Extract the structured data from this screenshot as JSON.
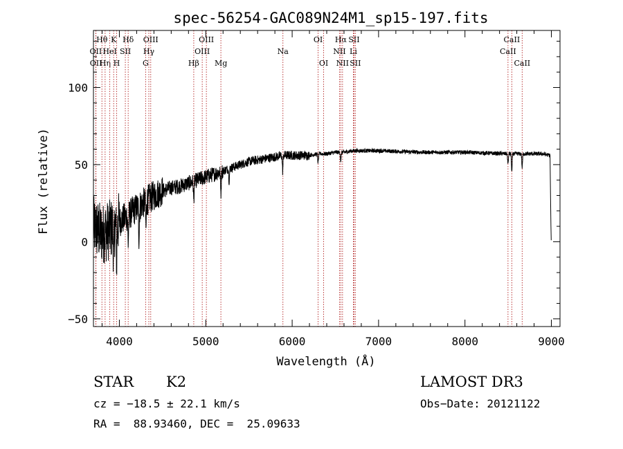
{
  "chart_data": {
    "type": "line",
    "title": "spec-56254-GAC089N24M1_sp15-197.fits",
    "xlabel": "Wavelength (Å)",
    "ylabel": "Flux (relative)",
    "xlim": [
      3700,
      9100
    ],
    "ylim": [
      -55,
      137
    ],
    "x_ticks": [
      4000,
      5000,
      6000,
      7000,
      8000,
      9000
    ],
    "y_ticks": [
      -50,
      0,
      50,
      100
    ],
    "x_tick_labels": [
      "4000",
      "5000",
      "6000",
      "7000",
      "8000",
      "9000"
    ],
    "y_tick_labels": [
      "−50",
      "0",
      "50",
      "100"
    ],
    "series": [
      {
        "name": "spectrum",
        "color": "#000000",
        "continuum": [
          [
            3700,
            10
          ],
          [
            3800,
            5
          ],
          [
            3900,
            8
          ],
          [
            4000,
            13
          ],
          [
            4100,
            17
          ],
          [
            4200,
            22
          ],
          [
            4300,
            26
          ],
          [
            4400,
            30
          ],
          [
            4500,
            33
          ],
          [
            4600,
            35
          ],
          [
            4700,
            36
          ],
          [
            4800,
            38
          ],
          [
            4900,
            40
          ],
          [
            5000,
            42
          ],
          [
            5100,
            44
          ],
          [
            5200,
            46
          ],
          [
            5300,
            48
          ],
          [
            5400,
            50
          ],
          [
            5500,
            52
          ],
          [
            5600,
            53
          ],
          [
            5700,
            54
          ],
          [
            5800,
            55
          ],
          [
            5900,
            56
          ],
          [
            6000,
            56
          ],
          [
            6100,
            56
          ],
          [
            6200,
            56
          ],
          [
            6300,
            57
          ],
          [
            6400,
            57
          ],
          [
            6500,
            58
          ],
          [
            6600,
            58
          ],
          [
            6700,
            59
          ],
          [
            6800,
            59
          ],
          [
            7000,
            59
          ],
          [
            7500,
            58
          ],
          [
            8000,
            58
          ],
          [
            8500,
            57
          ],
          [
            8700,
            57
          ],
          [
            8900,
            57
          ],
          [
            8980,
            56
          ]
        ],
        "absorption": [
          [
            3934,
            -25
          ],
          [
            3969,
            -22
          ],
          [
            4102,
            -18
          ],
          [
            4227,
            -20
          ],
          [
            4308,
            -18
          ],
          [
            4861,
            -12
          ],
          [
            5175,
            -14
          ],
          [
            5270,
            -8
          ],
          [
            5890,
            -10
          ],
          [
            6300,
            -6
          ],
          [
            6563,
            -6
          ],
          [
            8498,
            -7
          ],
          [
            8542,
            -12
          ],
          [
            8662,
            -9
          ]
        ]
      }
    ],
    "lines": [
      {
        "label": "Hθ",
        "wl": 3798,
        "row": 0
      },
      {
        "label": "OII",
        "wl": 3727,
        "row": 1
      },
      {
        "label": "OII",
        "wl": 3729,
        "row": 2
      },
      {
        "label": "Hη",
        "wl": 3835,
        "row": 2
      },
      {
        "label": "HeI",
        "wl": 3889,
        "row": 1
      },
      {
        "label": "K",
        "wl": 3934,
        "row": 0
      },
      {
        "label": "H",
        "wl": 3969,
        "row": 2
      },
      {
        "label": "SII",
        "wl": 4069,
        "row": 1
      },
      {
        "label": "Hδ",
        "wl": 4102,
        "row": 0
      },
      {
        "label": "G",
        "wl": 4304,
        "row": 2
      },
      {
        "label": "OIII",
        "wl": 4363,
        "row": 0
      },
      {
        "label": "Hγ",
        "wl": 4341,
        "row": 1
      },
      {
        "label": "Hβ",
        "wl": 4861,
        "row": 2
      },
      {
        "label": "OIII",
        "wl": 5007,
        "row": 0
      },
      {
        "label": "OIII",
        "wl": 4959,
        "row": 1
      },
      {
        "label": "Mg",
        "wl": 5175,
        "row": 2
      },
      {
        "label": "Na",
        "wl": 5893,
        "row": 1
      },
      {
        "label": "OI",
        "wl": 6300,
        "row": 0
      },
      {
        "label": "OI",
        "wl": 6364,
        "row": 2
      },
      {
        "label": "Hα",
        "wl": 6563,
        "row": 0
      },
      {
        "label": "NII",
        "wl": 6548,
        "row": 1
      },
      {
        "label": "NII",
        "wl": 6583,
        "row": 2
      },
      {
        "label": "SII",
        "wl": 6716,
        "row": 0
      },
      {
        "label": "Li",
        "wl": 6708,
        "row": 1
      },
      {
        "label": "SII",
        "wl": 6731,
        "row": 2
      },
      {
        "label": "CaII",
        "wl": 8542,
        "row": 0
      },
      {
        "label": "CaII",
        "wl": 8498,
        "row": 1
      },
      {
        "label": "CaII",
        "wl": 8662,
        "row": 2
      }
    ],
    "line_color": "#b22222"
  },
  "info": {
    "class_label": "STAR",
    "subclass": "K2",
    "survey": "LAMOST DR3",
    "cz": "cz = −18.5 ± 22.1 km/s",
    "obs_date": "Obs−Date: 20121122",
    "radec": "RA =  88.93460, DEC =  25.09633"
  }
}
